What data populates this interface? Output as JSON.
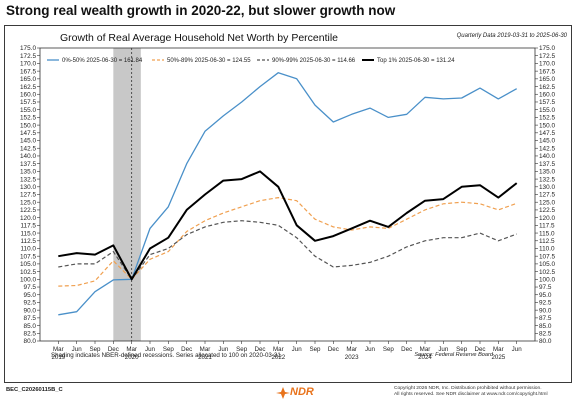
{
  "headline": "Strong real wealth growth in 2020-22, but slower growth now",
  "footer": {
    "code": "BEC_C20260115B_C",
    "logo_text": "NDR",
    "copyright_line1": "Copyright 2026 NDR, Inc. Distribution prohibited without permission.",
    "copyright_line2": "All rights reserved. See NDR disclaimer at www.ndr.com/copyright.html"
  },
  "colors": {
    "s1": "#4a90c9",
    "s2": "#f0a050",
    "s3": "#555555",
    "s4": "#000000",
    "recession": "#c8c8c8",
    "logo": "#e8731c"
  },
  "chart_data": {
    "type": "line",
    "title": "Growth of Real Average Household Net Worth by Percentile",
    "period_note": "Quarterly Data 2019-03-31 to 2025-06-30",
    "note": "Shading indicates NBER-defined recessions. Series allocated to 100 on 2020-03-31",
    "source": "Source: Federal Reserve Board",
    "ylim": [
      80,
      175
    ],
    "y_ticks": [
      "80.0",
      "82.5",
      "85.0",
      "87.5",
      "90.0",
      "92.5",
      "95.0",
      "97.5",
      "100.0",
      "102.5",
      "105.0",
      "107.5",
      "110.0",
      "112.5",
      "115.0",
      "117.5",
      "120.0",
      "122.5",
      "125.0",
      "127.5",
      "130.0",
      "132.5",
      "135.0",
      "137.5",
      "140.0",
      "142.5",
      "145.0",
      "147.5",
      "150.0",
      "152.5",
      "155.0",
      "157.5",
      "160.0",
      "162.5",
      "165.0",
      "167.5",
      "170.0",
      "172.5",
      "175.0"
    ],
    "x_range": [
      2019.0,
      2025.75
    ],
    "month_ticks": [
      {
        "x": 2019.25,
        "label": "Mar"
      },
      {
        "x": 2019.5,
        "label": "Jun"
      },
      {
        "x": 2019.75,
        "label": "Sep"
      },
      {
        "x": 2020.0,
        "label": "Dec"
      },
      {
        "x": 2020.25,
        "label": "Mar"
      },
      {
        "x": 2020.5,
        "label": "Jun"
      },
      {
        "x": 2020.75,
        "label": "Sep"
      },
      {
        "x": 2021.0,
        "label": "Dec"
      },
      {
        "x": 2021.25,
        "label": "Mar"
      },
      {
        "x": 2021.5,
        "label": "Jun"
      },
      {
        "x": 2021.75,
        "label": "Sep"
      },
      {
        "x": 2022.0,
        "label": "Dec"
      },
      {
        "x": 2022.25,
        "label": "Mar"
      },
      {
        "x": 2022.5,
        "label": "Jun"
      },
      {
        "x": 2022.75,
        "label": "Sep"
      },
      {
        "x": 2023.0,
        "label": "Dec"
      },
      {
        "x": 2023.25,
        "label": "Mar"
      },
      {
        "x": 2023.5,
        "label": "Jun"
      },
      {
        "x": 2023.75,
        "label": "Sep"
      },
      {
        "x": 2024.0,
        "label": "Dec"
      },
      {
        "x": 2024.25,
        "label": "Mar"
      },
      {
        "x": 2024.5,
        "label": "Jun"
      },
      {
        "x": 2024.75,
        "label": "Sep"
      },
      {
        "x": 2025.0,
        "label": "Dec"
      },
      {
        "x": 2025.25,
        "label": "Mar"
      },
      {
        "x": 2025.5,
        "label": "Jun"
      }
    ],
    "year_labels": [
      {
        "x": 2019.25,
        "label": "2019"
      },
      {
        "x": 2020.25,
        "label": "2020"
      },
      {
        "x": 2021.25,
        "label": "2021"
      },
      {
        "x": 2022.25,
        "label": "2022"
      },
      {
        "x": 2023.25,
        "label": "2023"
      },
      {
        "x": 2024.25,
        "label": "2024"
      },
      {
        "x": 2025.25,
        "label": "2025"
      }
    ],
    "recession": [
      2020.0,
      2020.375
    ],
    "x": [
      2019.25,
      2019.5,
      2019.75,
      2020.0,
      2020.25,
      2020.5,
      2020.75,
      2021.0,
      2021.25,
      2021.5,
      2021.75,
      2022.0,
      2022.25,
      2022.5,
      2022.75,
      2023.0,
      2023.25,
      2023.5,
      2023.75,
      2024.0,
      2024.25,
      2024.5,
      2024.75,
      2025.0,
      2025.25,
      2025.5
    ],
    "series": [
      {
        "name": "0%-50% 2025-06-30 = 161.84",
        "style": "solid",
        "values": [
          88.5,
          89.5,
          96.0,
          99.8,
          100.0,
          116.5,
          123.5,
          137.5,
          148.0,
          153.0,
          157.5,
          162.5,
          167.0,
          165.0,
          156.5,
          151.0,
          153.5,
          155.5,
          152.5,
          153.5,
          159.0,
          158.5,
          158.8,
          162.0,
          158.5,
          161.8
        ]
      },
      {
        "name": "50%-89% 2025-06-30 = 124.55",
        "style": "dashed",
        "values": [
          97.8,
          98.0,
          99.5,
          106.0,
          100.0,
          106.5,
          109.0,
          115.5,
          119.0,
          121.5,
          123.5,
          125.5,
          126.5,
          125.5,
          119.5,
          117.0,
          116.0,
          117.0,
          116.5,
          119.5,
          122.5,
          124.5,
          125.0,
          124.5,
          122.5,
          124.6
        ]
      },
      {
        "name": "90%-99% 2025-06-30 = 114.66",
        "style": "dashed",
        "values": [
          104.0,
          105.0,
          105.0,
          109.0,
          100.0,
          108.0,
          110.0,
          114.5,
          117.0,
          118.5,
          119.0,
          118.5,
          117.5,
          113.5,
          107.5,
          104.0,
          104.5,
          105.5,
          107.5,
          110.5,
          112.5,
          113.5,
          113.5,
          115.0,
          112.5,
          114.7
        ]
      },
      {
        "name": "Top 1% 2025-06-30 = 131.24",
        "style": "solid-thick",
        "values": [
          107.5,
          108.5,
          108.0,
          111.0,
          100.0,
          110.0,
          113.5,
          122.5,
          127.5,
          132.0,
          132.5,
          135.0,
          130.0,
          117.5,
          112.5,
          114.0,
          116.5,
          119.0,
          117.0,
          121.5,
          125.5,
          126.0,
          130.0,
          130.5,
          126.5,
          131.2
        ]
      }
    ]
  }
}
